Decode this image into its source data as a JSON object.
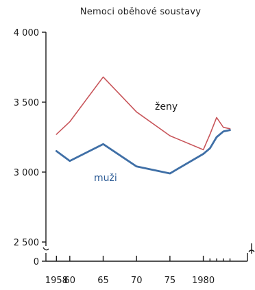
{
  "chart_data": {
    "type": "line",
    "title": "Nemoci oběhové soustavy",
    "xlabel": "",
    "ylabel": "",
    "ylim": [
      2500,
      4000
    ],
    "y_ticks": [
      {
        "value": 4000,
        "label": "4 000"
      },
      {
        "value": 3500,
        "label": "3 500"
      },
      {
        "value": 3000,
        "label": "3 000"
      },
      {
        "value": 2500,
        "label": "2 500"
      },
      {
        "value": 0,
        "label": "0"
      }
    ],
    "x_ticks": [
      {
        "value": 1958,
        "label": "1958"
      },
      {
        "value": 1960,
        "label": "60"
      },
      {
        "value": 1965,
        "label": "65"
      },
      {
        "value": 1970,
        "label": "70"
      },
      {
        "value": 1975,
        "label": "75"
      },
      {
        "value": 1980,
        "label": "1980"
      }
    ],
    "x_minor_ticks": [
      1981,
      1982,
      1983,
      1984
    ],
    "xlim": [
      1955.5,
      1986
    ],
    "axis_break": true,
    "grid": false,
    "series": [
      {
        "name": "ženy",
        "color": "#c8555a",
        "x": [
          1958,
          1960,
          1965,
          1970,
          1975,
          1980,
          1981,
          1982,
          1983,
          1984
        ],
        "y": [
          3270,
          3360,
          3680,
          3430,
          3260,
          3160,
          3270,
          3390,
          3320,
          3310
        ]
      },
      {
        "name": "muži",
        "color": "#3f6fa6",
        "x": [
          1958,
          1960,
          1965,
          1970,
          1975,
          1980,
          1981,
          1982,
          1983,
          1984
        ],
        "y": [
          3150,
          3080,
          3200,
          3040,
          2990,
          3130,
          3170,
          3250,
          3290,
          3300
        ]
      }
    ]
  }
}
